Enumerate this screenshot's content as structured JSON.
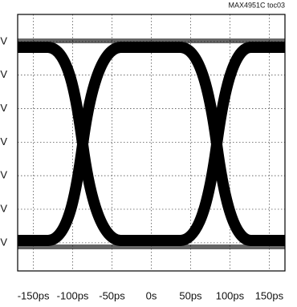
{
  "chart_data": {
    "type": "eye",
    "note_text": "MAX4951C toc03",
    "xlim": [
      -170,
      170
    ],
    "xticks": [
      {
        "value": -150,
        "label": "-150ps"
      },
      {
        "value": -100,
        "label": "-100ps"
      },
      {
        "value": -50,
        "label": "-50ps"
      },
      {
        "value": 0,
        "label": "0s"
      },
      {
        "value": 50,
        "label": "50ps"
      },
      {
        "value": 100,
        "label": "100ps"
      },
      {
        "value": 150,
        "label": "150ps"
      }
    ],
    "ylim": [
      0.16,
      7.81
    ],
    "yticks": [
      {
        "value": 1,
        "label": "V"
      },
      {
        "value": 2,
        "label": "V"
      },
      {
        "value": 3,
        "label": "V"
      },
      {
        "value": 4,
        "label": "V"
      },
      {
        "value": 5,
        "label": "V"
      },
      {
        "value": 6,
        "label": "V"
      },
      {
        "value": 7,
        "label": "V"
      }
    ],
    "grid": true
  }
}
